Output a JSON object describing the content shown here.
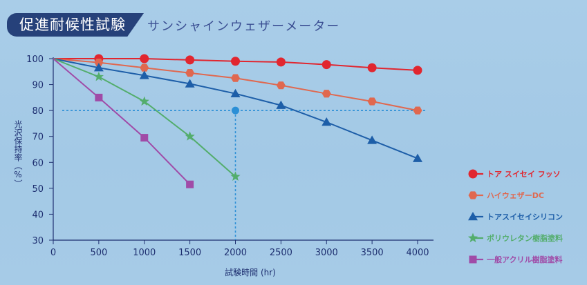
{
  "header": {
    "title": "促進耐候性試験",
    "subtitle": "サンシャインウェザーメーター"
  },
  "colors": {
    "title_bg": "#26417a",
    "axis": "#1e2f70",
    "reference_line": "#2b8fd6"
  },
  "chart_data": {
    "type": "line",
    "xlabel": "試験時間 (hr)",
    "ylabel": "光沢保持率（%）",
    "xlim": [
      0,
      4000
    ],
    "ylim": [
      30,
      100
    ],
    "x_ticks": [
      0,
      500,
      1000,
      1500,
      2000,
      2500,
      3000,
      3500,
      4000
    ],
    "y_ticks": [
      30,
      40,
      50,
      60,
      70,
      80,
      90,
      100
    ],
    "grid": false,
    "legend_position": "right",
    "reference": {
      "y": 80,
      "x": 2000
    },
    "series": [
      {
        "name": "トア スイセイ フッソ",
        "color": "#e1262f",
        "marker": "circle",
        "x": [
          0,
          500,
          1000,
          1500,
          2000,
          2500,
          3000,
          3500,
          4000
        ],
        "y": [
          100,
          100,
          100,
          99.5,
          99,
          98.7,
          97.7,
          96.5,
          95.5
        ]
      },
      {
        "name": "ハイウェザーDC",
        "color": "#e0684f",
        "marker": "hexagon",
        "x": [
          0,
          500,
          1000,
          1500,
          2000,
          2500,
          3000,
          3500,
          4000
        ],
        "y": [
          100,
          98.5,
          96.5,
          94.5,
          92.5,
          89.7,
          86.5,
          83.5,
          80
        ]
      },
      {
        "name": "トアスイセイシリコン",
        "color": "#1d5ea8",
        "marker": "triangle",
        "x": [
          0,
          500,
          1000,
          1500,
          2000,
          2500,
          3000,
          3500,
          4000
        ],
        "y": [
          100,
          96.5,
          93.5,
          90.3,
          86.5,
          82,
          75.5,
          68.5,
          61.5
        ]
      },
      {
        "name": "ポリウレタン樹脂塗料",
        "color": "#53ad6c",
        "marker": "star",
        "x": [
          0,
          500,
          1000,
          1500,
          2000
        ],
        "y": [
          100,
          93,
          83.5,
          70,
          54.5
        ]
      },
      {
        "name": "一般アクリル樹脂塗料",
        "color": "#a04ba7",
        "marker": "square",
        "x": [
          0,
          500,
          1000,
          1500
        ],
        "y": [
          100,
          85,
          69.5,
          51.5
        ]
      }
    ]
  }
}
